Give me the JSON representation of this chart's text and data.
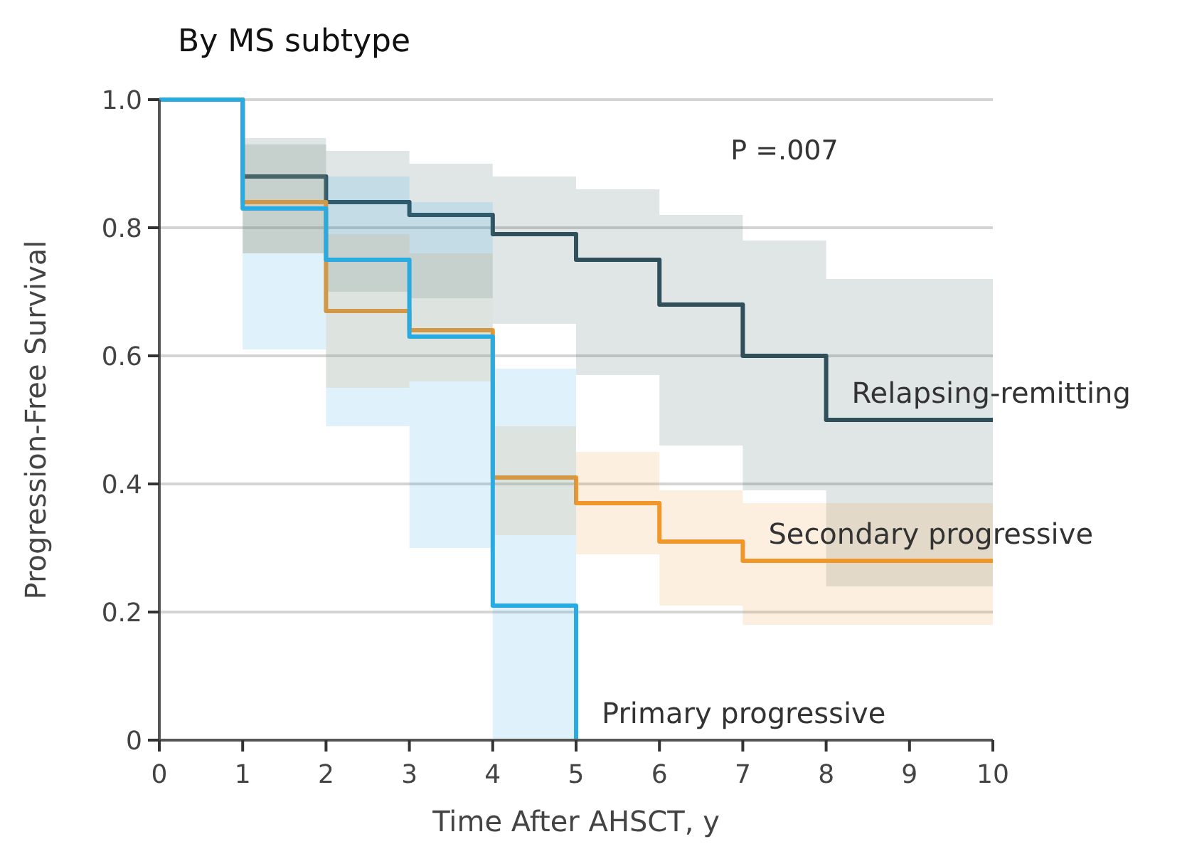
{
  "chart_data": {
    "type": "step",
    "title": "By MS subtype",
    "xlabel": "Time After AHSCT, y",
    "ylabel": "Progression-Free Survival",
    "xlim": [
      0,
      10
    ],
    "xticks": [
      0,
      1,
      2,
      3,
      4,
      5,
      6,
      7,
      8,
      9,
      10
    ],
    "ylim": [
      0,
      1
    ],
    "yticks": [
      0,
      0.2,
      0.4,
      0.6,
      0.8,
      {
        "value": 1,
        "label": "1.0"
      }
    ],
    "grid": "y",
    "annotations": [
      "P =.007"
    ],
    "series": [
      {
        "name": "Relapsing-remitting",
        "color": "#2f4f5a",
        "x": [
          0,
          1,
          2,
          3,
          4,
          5,
          6,
          7,
          8,
          10
        ],
        "values": [
          1,
          0.88,
          0.84,
          0.82,
          0.79,
          0.75,
          0.68,
          0.6,
          0.5,
          0.5
        ],
        "lower": [
          1,
          0.76,
          0.7,
          0.69,
          0.65,
          0.57,
          0.46,
          0.39,
          0.24,
          0.24
        ],
        "upper": [
          1,
          0.94,
          0.92,
          0.9,
          0.88,
          0.86,
          0.82,
          0.78,
          0.72,
          0.72
        ]
      },
      {
        "name": "Secondary progressive",
        "color": "#f0962a",
        "x": [
          0,
          1,
          2,
          3,
          4,
          5,
          6,
          7,
          10
        ],
        "values": [
          1,
          0.84,
          0.67,
          0.64,
          0.41,
          0.37,
          0.31,
          0.28,
          0.28
        ],
        "lower": [
          1,
          0.76,
          0.55,
          0.56,
          0.32,
          0.29,
          0.21,
          0.18,
          0.18
        ],
        "upper": [
          1,
          0.93,
          0.79,
          0.76,
          0.49,
          0.45,
          0.39,
          0.37,
          0.37
        ]
      },
      {
        "name": "Primary progressive",
        "color": "#29abe2",
        "x": [
          0,
          1,
          2,
          3,
          4,
          5
        ],
        "values": [
          1,
          0.83,
          0.75,
          0.63,
          0.21,
          0
        ],
        "lower": [
          1,
          0.61,
          0.49,
          0.3,
          0,
          0
        ],
        "upper": [
          1,
          0.93,
          0.88,
          0.84,
          0.58,
          0
        ]
      }
    ]
  }
}
